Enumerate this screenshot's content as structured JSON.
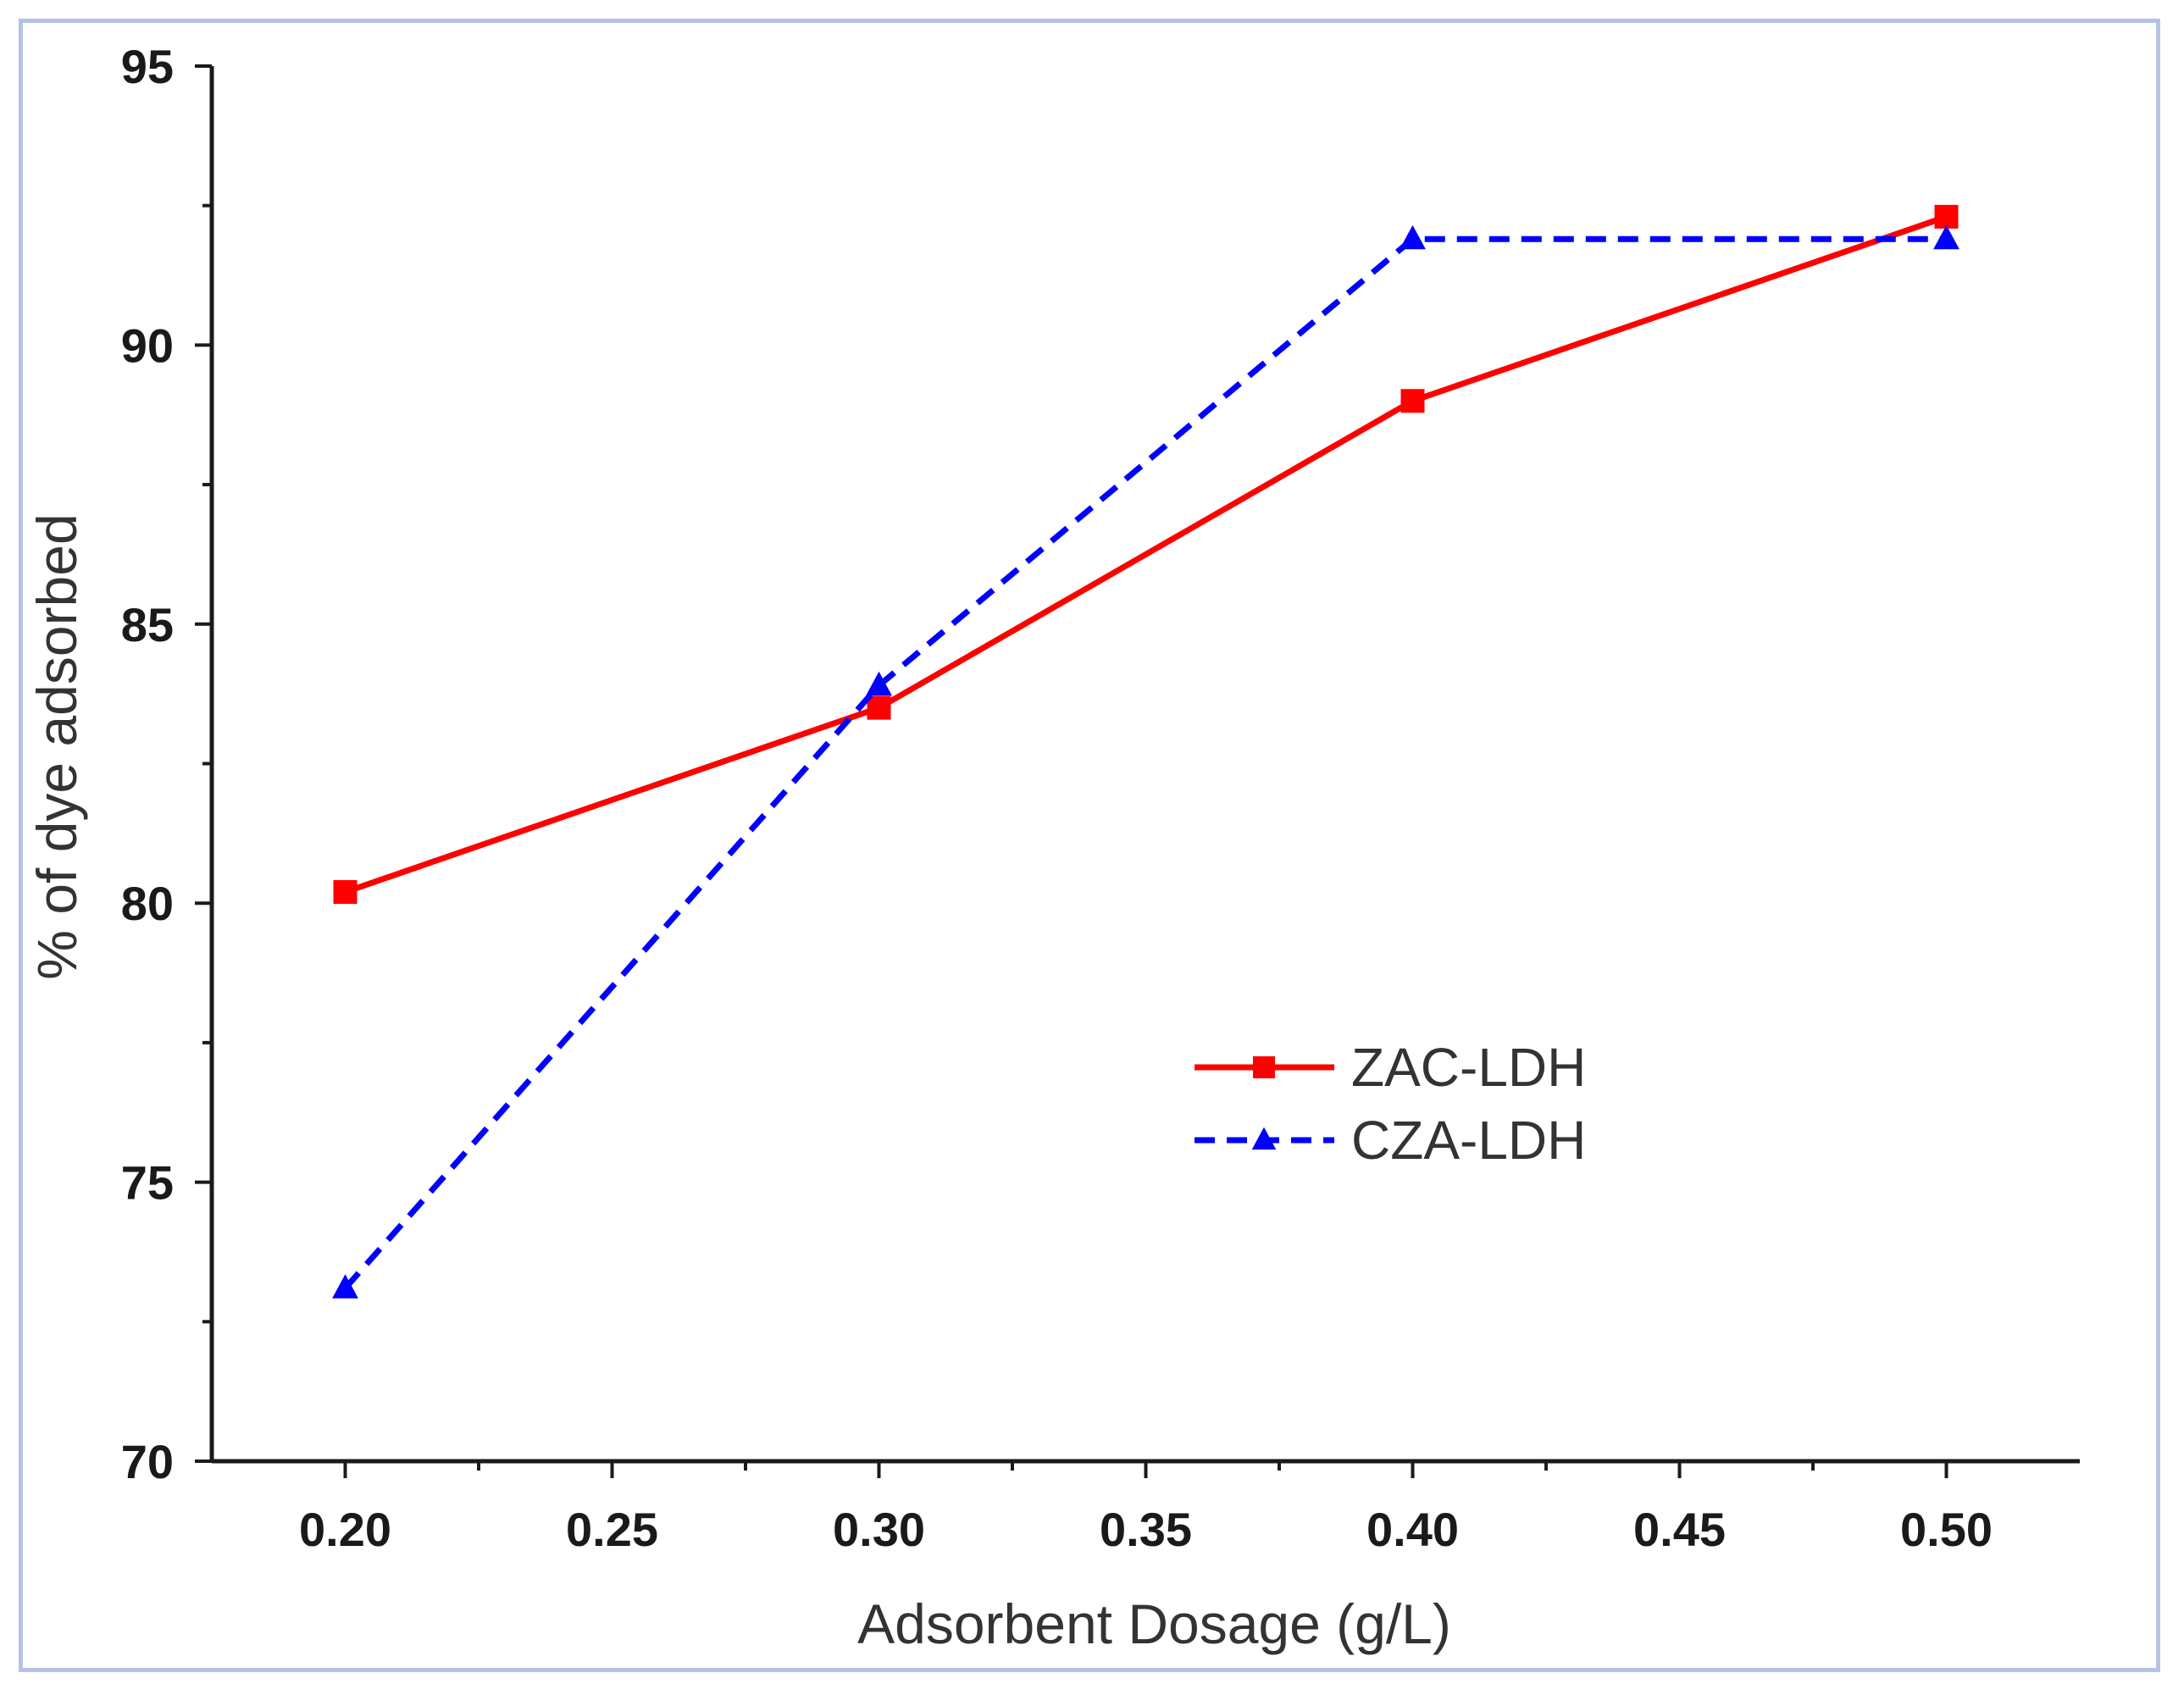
{
  "chart_data": {
    "type": "line",
    "title": "",
    "xlabel": "Adsorbent Dosage (g/L)",
    "ylabel": "% of dye adsorbed",
    "xlim": [
      0.175,
      0.525
    ],
    "ylim": [
      70,
      95
    ],
    "x_ticks": [
      0.2,
      0.25,
      0.3,
      0.35,
      0.4,
      0.45,
      0.5
    ],
    "x_tick_labels": [
      "0.20",
      "0.25",
      "0.30",
      "0.35",
      "0.40",
      "0.45",
      "0.50"
    ],
    "x_minor_ticks": [
      0.225,
      0.275,
      0.325,
      0.375,
      0.425,
      0.475
    ],
    "y_ticks": [
      70,
      75,
      80,
      85,
      90,
      95
    ],
    "y_tick_labels": [
      "70",
      "75",
      "80",
      "85",
      "90",
      "95"
    ],
    "y_minor_ticks": [
      72.5,
      77.5,
      82.5,
      87.5,
      92.5
    ],
    "grid": false,
    "legend_position": "center-right",
    "series": [
      {
        "name": "ZAC-LDH",
        "color": "#ff0000",
        "line_style": "solid",
        "marker": "square",
        "x": [
          0.2,
          0.3,
          0.4,
          0.5
        ],
        "values": [
          80.2,
          83.5,
          89.0,
          92.3
        ]
      },
      {
        "name": "CZA-LDH",
        "color": "#0000ff",
        "line_style": "dashed",
        "marker": "triangle",
        "x": [
          0.2,
          0.3,
          0.4,
          0.5
        ],
        "values": [
          73.1,
          83.9,
          91.9,
          91.9
        ]
      }
    ]
  }
}
